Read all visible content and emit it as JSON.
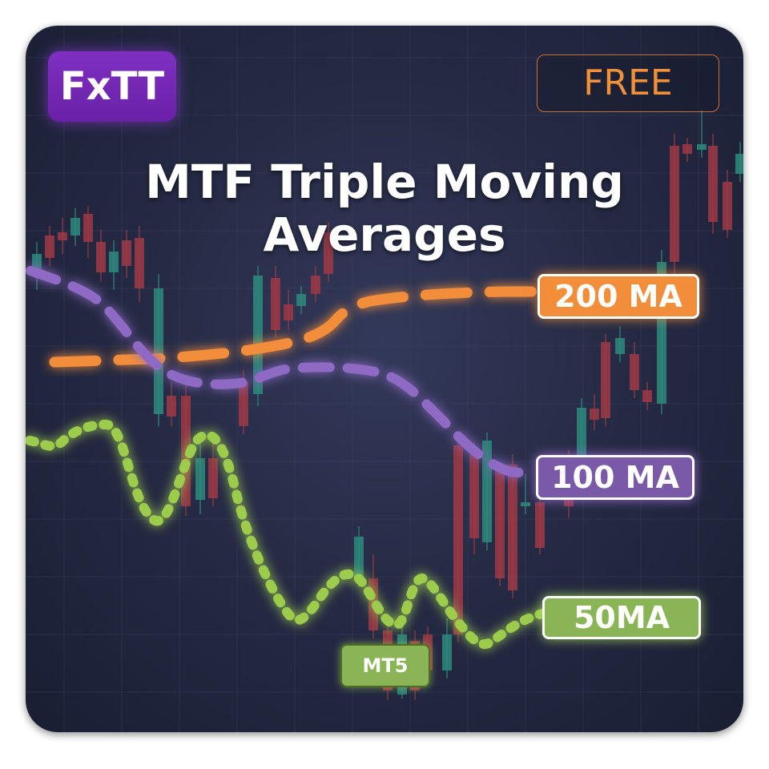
{
  "brand": {
    "logo_text": "FxTT"
  },
  "badge": {
    "text": "FREE"
  },
  "title": "MTF Triple Moving Averages",
  "platform_badge": "MT5",
  "moving_averages": [
    {
      "label": "200 MA",
      "period": 200,
      "color": "#f28d3a",
      "style": "long-dash"
    },
    {
      "label": "100 MA",
      "period": 100,
      "color": "#8e6bc4",
      "style": "dash"
    },
    {
      "label": "50MA",
      "period": 50,
      "color": "#9dcc4e",
      "style": "dotted"
    }
  ],
  "colors": {
    "background": "#262b45",
    "bullish_candle": "#2e8a7e",
    "bearish_candle": "#9e3a45",
    "logo": "#7e2fbf",
    "free_text": "#f0913a"
  }
}
